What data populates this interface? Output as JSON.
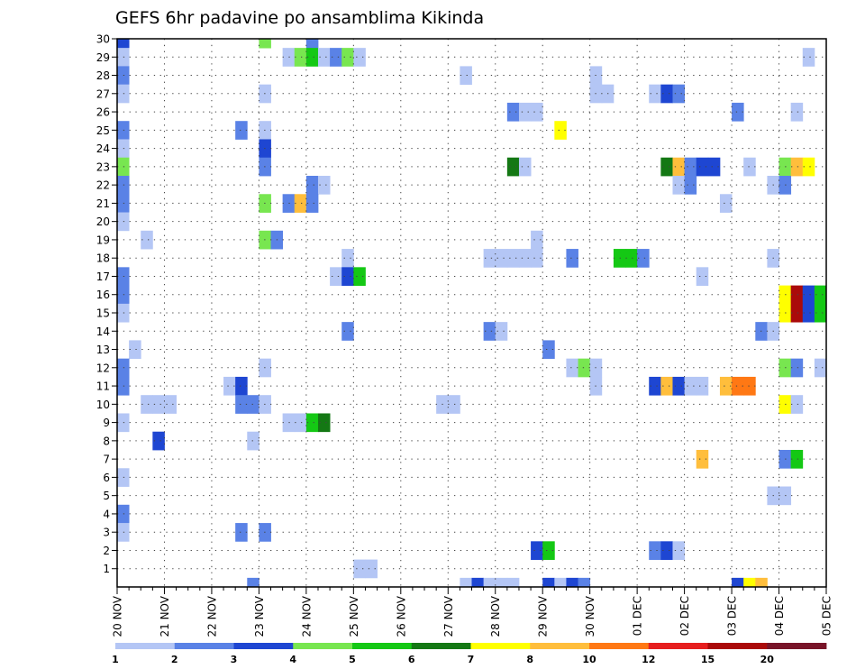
{
  "chart_data": {
    "type": "heatmap",
    "title": "GEFS 6hr padavine po ansamblima Kikinda",
    "x_tick_labels": [
      "20 NOV",
      "21 NOV",
      "22 NOV",
      "23 NOV",
      "24 NOV",
      "25 NOV",
      "26 NOV",
      "27 NOV",
      "28 NOV",
      "29 NOV",
      "30 NOV",
      "01 DEC",
      "02 DEC",
      "03 DEC",
      "04 DEC",
      "05 DEC"
    ],
    "x_range_days": [
      0,
      15
    ],
    "x_step_days": 0.25,
    "y_tick_labels": [
      "1",
      "2",
      "3",
      "4",
      "5",
      "6",
      "7",
      "8",
      "9",
      "10",
      "11",
      "12",
      "13",
      "14",
      "15",
      "16",
      "17",
      "18",
      "19",
      "20",
      "21",
      "22",
      "23",
      "24",
      "25",
      "26",
      "27",
      "28",
      "29",
      "30"
    ],
    "y_range": [
      0,
      30
    ],
    "grid": true,
    "legend_position": "bottom",
    "legend_labels": [
      "1",
      "2",
      "3",
      "4",
      "5",
      "6",
      "7",
      "8",
      "10",
      "12",
      "15",
      "20"
    ],
    "legend_colors": [
      "#b4c6f5",
      "#5a82e6",
      "#1e46d2",
      "#78e650",
      "#14c814",
      "#147814",
      "#ffff00",
      "#ffbe3c",
      "#ff7814",
      "#e61e1e",
      "#aa0a0a",
      "#781428"
    ],
    "cells": [
      [
        0,
        30,
        3
      ],
      [
        3,
        30,
        4
      ],
      [
        4,
        30,
        2
      ],
      [
        0,
        29,
        1
      ],
      [
        3.5,
        29,
        1
      ],
      [
        3.75,
        29,
        4
      ],
      [
        4,
        29,
        5
      ],
      [
        4.25,
        29,
        1
      ],
      [
        4.5,
        29,
        2
      ],
      [
        4.75,
        29,
        4
      ],
      [
        5,
        29,
        1
      ],
      [
        14.5,
        29,
        1
      ],
      [
        0,
        28,
        2
      ],
      [
        7.25,
        28,
        1
      ],
      [
        10,
        28,
        1
      ],
      [
        0,
        27,
        1
      ],
      [
        3,
        27,
        1
      ],
      [
        10,
        27,
        1
      ],
      [
        10.25,
        27,
        1
      ],
      [
        11.25,
        27,
        1
      ],
      [
        11.5,
        27,
        3
      ],
      [
        11.75,
        27,
        2
      ],
      [
        8.25,
        26,
        2
      ],
      [
        8.5,
        26,
        1
      ],
      [
        8.75,
        26,
        1
      ],
      [
        13,
        26,
        2
      ],
      [
        14.25,
        26,
        1
      ],
      [
        0,
        25,
        2
      ],
      [
        2.5,
        25,
        2
      ],
      [
        3,
        25,
        1
      ],
      [
        9.25,
        25,
        7
      ],
      [
        0,
        24,
        1
      ],
      [
        3,
        24,
        3
      ],
      [
        0,
        23,
        4
      ],
      [
        3,
        23,
        2
      ],
      [
        8.25,
        23,
        6
      ],
      [
        8.5,
        23,
        1
      ],
      [
        11.5,
        23,
        6
      ],
      [
        11.75,
        23,
        8
      ],
      [
        12,
        23,
        2
      ],
      [
        12.25,
        23,
        3
      ],
      [
        12.5,
        23,
        3
      ],
      [
        13.25,
        23,
        1
      ],
      [
        14,
        23,
        4
      ],
      [
        14.25,
        23,
        8
      ],
      [
        14.5,
        23,
        7
      ],
      [
        0,
        22,
        2
      ],
      [
        4,
        22,
        2
      ],
      [
        4.25,
        22,
        1
      ],
      [
        11.75,
        22,
        1
      ],
      [
        12,
        22,
        2
      ],
      [
        13.75,
        22,
        1
      ],
      [
        14,
        22,
        2
      ],
      [
        0,
        21,
        2
      ],
      [
        3,
        21,
        4
      ],
      [
        3.5,
        21,
        2
      ],
      [
        3.75,
        21,
        8
      ],
      [
        4,
        21,
        2
      ],
      [
        12.75,
        21,
        1
      ],
      [
        0,
        20,
        1
      ],
      [
        0.5,
        19,
        1
      ],
      [
        3,
        19,
        4
      ],
      [
        3.25,
        19,
        2
      ],
      [
        8.75,
        19,
        1
      ],
      [
        4.75,
        18,
        1
      ],
      [
        7.75,
        18,
        1
      ],
      [
        8,
        18,
        1
      ],
      [
        8.25,
        18,
        1
      ],
      [
        8.5,
        18,
        1
      ],
      [
        8.75,
        18,
        1
      ],
      [
        9.5,
        18,
        2
      ],
      [
        10.5,
        18,
        5
      ],
      [
        10.75,
        18,
        5
      ],
      [
        11,
        18,
        2
      ],
      [
        13.75,
        18,
        1
      ],
      [
        0,
        17,
        2
      ],
      [
        4.5,
        17,
        1
      ],
      [
        4.75,
        17,
        3
      ],
      [
        5,
        17,
        5
      ],
      [
        12.25,
        17,
        1
      ],
      [
        0,
        16,
        2
      ],
      [
        14,
        16,
        7
      ],
      [
        14.25,
        16,
        11
      ],
      [
        14.5,
        16,
        3
      ],
      [
        14.75,
        16,
        5
      ],
      [
        0,
        15,
        1
      ],
      [
        14,
        15,
        7
      ],
      [
        14.25,
        15,
        11
      ],
      [
        14.5,
        15,
        3
      ],
      [
        14.75,
        15,
        5
      ],
      [
        4.75,
        14,
        2
      ],
      [
        7.75,
        14,
        2
      ],
      [
        8,
        14,
        1
      ],
      [
        13.5,
        14,
        2
      ],
      [
        13.75,
        14,
        1
      ],
      [
        0.25,
        13,
        1
      ],
      [
        9,
        13,
        2
      ],
      [
        0,
        12,
        2
      ],
      [
        3,
        12,
        1
      ],
      [
        9.5,
        12,
        1
      ],
      [
        9.75,
        12,
        4
      ],
      [
        10,
        12,
        1
      ],
      [
        14,
        12,
        4
      ],
      [
        14.25,
        12,
        2
      ],
      [
        14.75,
        12,
        1
      ],
      [
        0,
        11,
        2
      ],
      [
        2.25,
        11,
        1
      ],
      [
        2.5,
        11,
        3
      ],
      [
        10,
        11,
        1
      ],
      [
        11.25,
        11,
        3
      ],
      [
        11.5,
        11,
        8
      ],
      [
        11.75,
        11,
        3
      ],
      [
        12,
        11,
        1
      ],
      [
        12.25,
        11,
        1
      ],
      [
        12.75,
        11,
        8
      ],
      [
        13,
        11,
        9
      ],
      [
        13.25,
        11,
        9
      ],
      [
        0.5,
        10,
        1
      ],
      [
        0.75,
        10,
        1
      ],
      [
        1,
        10,
        1
      ],
      [
        2.5,
        10,
        2
      ],
      [
        2.75,
        10,
        2
      ],
      [
        3,
        10,
        1
      ],
      [
        6.75,
        10,
        1
      ],
      [
        7,
        10,
        1
      ],
      [
        14,
        10,
        7
      ],
      [
        14.25,
        10,
        1
      ],
      [
        0,
        9,
        1
      ],
      [
        3.5,
        9,
        1
      ],
      [
        3.75,
        9,
        1
      ],
      [
        4,
        9,
        5
      ],
      [
        4.25,
        9,
        6
      ],
      [
        0.75,
        8,
        3
      ],
      [
        2.75,
        8,
        1
      ],
      [
        12.25,
        7,
        8
      ],
      [
        14,
        7,
        2
      ],
      [
        14.25,
        7,
        5
      ],
      [
        0,
        6,
        1
      ],
      [
        13.75,
        5,
        1
      ],
      [
        14,
        5,
        1
      ],
      [
        0,
        4,
        2
      ],
      [
        0,
        3,
        1
      ],
      [
        2.5,
        3,
        2
      ],
      [
        3,
        3,
        2
      ],
      [
        8.75,
        2,
        3
      ],
      [
        9,
        2,
        5
      ],
      [
        11.25,
        2,
        2
      ],
      [
        11.5,
        2,
        3
      ],
      [
        11.75,
        2,
        1
      ],
      [
        5,
        1,
        1
      ],
      [
        5.25,
        1,
        1
      ],
      [
        2.75,
        0,
        2
      ],
      [
        7.25,
        0,
        1
      ],
      [
        7.5,
        0,
        3
      ],
      [
        7.75,
        0,
        1
      ],
      [
        8,
        0,
        1
      ],
      [
        8.25,
        0,
        1
      ],
      [
        9,
        0,
        3
      ],
      [
        9.25,
        0,
        1
      ],
      [
        9.5,
        0,
        3
      ],
      [
        9.75,
        0,
        2
      ],
      [
        13,
        0,
        3
      ],
      [
        13.25,
        0,
        7
      ],
      [
        13.5,
        0,
        8
      ]
    ]
  }
}
